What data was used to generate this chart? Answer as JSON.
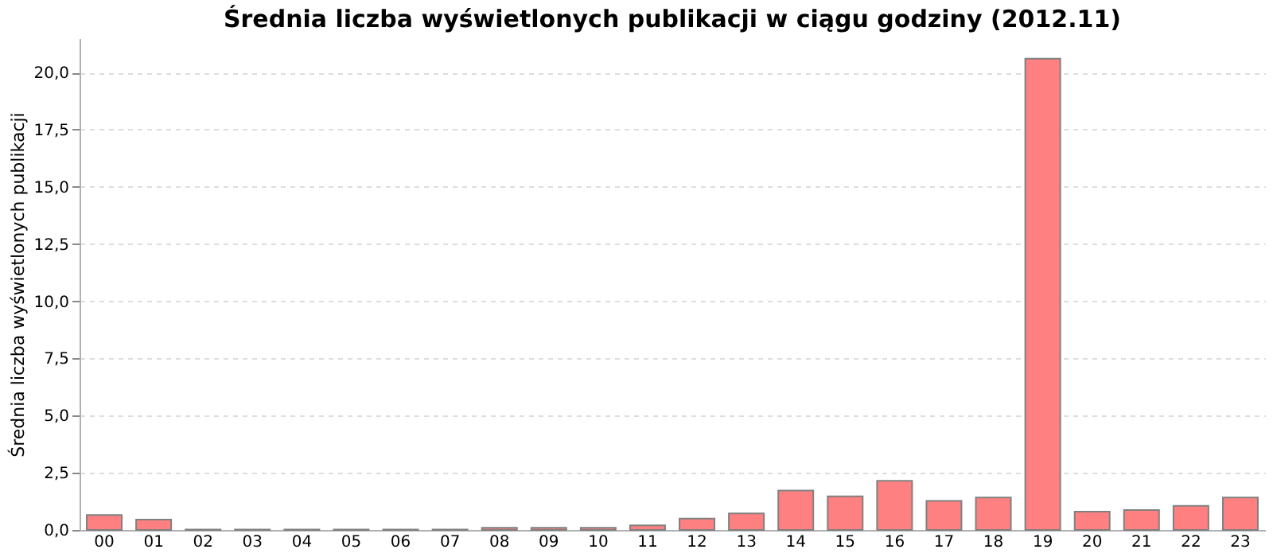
{
  "chart_data": {
    "type": "bar",
    "title": "Średnia liczba wyświetlonych publikacji w ciągu godziny (2012.11)",
    "ylabel": "Średnia liczba wyświetlonych publikacji",
    "categories": [
      "00",
      "01",
      "02",
      "03",
      "04",
      "05",
      "06",
      "07",
      "08",
      "09",
      "10",
      "11",
      "12",
      "13",
      "14",
      "15",
      "16",
      "17",
      "18",
      "19",
      "20",
      "21",
      "22",
      "23"
    ],
    "values": [
      0.65,
      0.45,
      0.02,
      0.02,
      0.02,
      0.02,
      0.02,
      0.02,
      0.1,
      0.1,
      0.1,
      0.2,
      0.5,
      0.72,
      1.72,
      1.47,
      2.15,
      1.27,
      1.42,
      20.6,
      0.8,
      0.87,
      1.05,
      1.42
    ],
    "color": "#ff8080",
    "ylim": [
      0,
      21.5
    ],
    "yticks": [
      {
        "value": 0,
        "label": "0,0"
      },
      {
        "value": 2.5,
        "label": "2,5"
      },
      {
        "value": 5,
        "label": "5,0"
      },
      {
        "value": 7.5,
        "label": "7,5"
      },
      {
        "value": 10,
        "label": "10,0"
      },
      {
        "value": 12.5,
        "label": "12,5"
      },
      {
        "value": 15,
        "label": "15,0"
      },
      {
        "value": 17.5,
        "label": "17,5"
      },
      {
        "value": 20,
        "label": "20,0"
      }
    ],
    "grid": "y"
  }
}
